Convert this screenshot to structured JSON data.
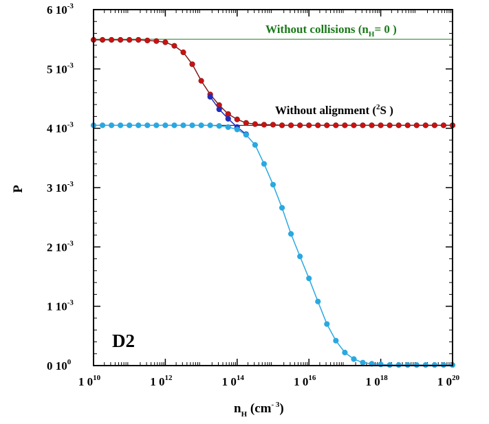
{
  "chart_data": {
    "type": "line",
    "xscale": "log",
    "x_ticks": [
      {
        "value": 10000000000.0,
        "base": "1 0",
        "exp": "10"
      },
      {
        "value": 1000000000000.0,
        "base": "1 0",
        "exp": "12"
      },
      {
        "value": 100000000000000.0,
        "base": "1 0",
        "exp": "14"
      },
      {
        "value": 1e+16,
        "base": "1 0",
        "exp": "16"
      },
      {
        "value": 1e+18,
        "base": "1 0",
        "exp": "18"
      },
      {
        "value": 1e+20,
        "base": "1 0",
        "exp": "20"
      }
    ],
    "y_ticks": [
      {
        "value": 0,
        "base": "0  10",
        "exp": "0"
      },
      {
        "value": 0.001,
        "base": "1  10",
        "exp": "-3"
      },
      {
        "value": 0.002,
        "base": "2  10",
        "exp": "-3"
      },
      {
        "value": 0.003,
        "base": "3  10",
        "exp": "-3"
      },
      {
        "value": 0.004,
        "base": "4  10",
        "exp": "-3"
      },
      {
        "value": 0.005,
        "base": "5  10",
        "exp": "-3"
      },
      {
        "value": 0.006,
        "base": "6  10",
        "exp": "-3"
      }
    ],
    "xlim": [
      10000000000.0,
      1e+20
    ],
    "ylim": [
      0,
      0.006
    ],
    "xlabel": {
      "base": "n",
      "sub": "H",
      "unit_open": " (cm",
      "unit_sup": "- 3",
      "unit_close": ")"
    },
    "ylabel": "P",
    "panel_label": "D2",
    "grid": false,
    "annotations": [
      {
        "key": "no_collisions",
        "text_before": "Without  collisions  (n",
        "sub": "H",
        "text_after": "= 0 )",
        "color": "#1a7a1a",
        "y": 0.0055
      },
      {
        "key": "no_alignment",
        "text_before": "Without  alignment  (",
        "sup": "2",
        "text_after": "S )",
        "color": "#000000",
        "y": 0.00405
      }
    ],
    "series": [
      {
        "key": "red",
        "color": "#cc1111",
        "line_color": "#7a1a1a",
        "x": [
          10.0,
          10.25,
          10.5,
          10.75,
          11.0,
          11.25,
          11.5,
          11.75,
          12.0,
          12.25,
          12.5,
          12.75,
          13.0,
          13.25,
          13.5,
          13.75,
          14.0,
          14.25,
          14.5,
          14.75,
          15.0,
          15.25,
          15.5,
          15.75,
          16.0,
          16.25,
          16.5,
          16.75,
          17.0,
          17.25,
          17.5,
          17.75,
          18.0,
          18.25,
          18.5,
          18.75,
          19.0,
          19.25,
          19.5,
          19.75,
          20.0
        ],
        "y": [
          0.00549,
          0.00549,
          0.00549,
          0.00549,
          0.00549,
          0.00549,
          0.00548,
          0.00547,
          0.00545,
          0.00539,
          0.00528,
          0.00508,
          0.0048,
          0.00457,
          0.00439,
          0.00424,
          0.00415,
          0.00409,
          0.00407,
          0.00406,
          0.00406,
          0.00405,
          0.00405,
          0.00405,
          0.00405,
          0.00405,
          0.00405,
          0.00405,
          0.00405,
          0.00405,
          0.00405,
          0.00405,
          0.00405,
          0.00405,
          0.00405,
          0.00405,
          0.00405,
          0.00405,
          0.00405,
          0.00405,
          0.00405
        ]
      },
      {
        "key": "dark_blue",
        "color": "#1f2dbb",
        "line_color": "#1f2dbb",
        "x": [
          13.25,
          13.5,
          13.75,
          14.0,
          14.25
        ],
        "y": [
          0.00453,
          0.00432,
          0.00416,
          0.00402,
          0.0039
        ]
      },
      {
        "key": "light_blue",
        "color": "#2aa8e0",
        "line_color": "#2aa8e0",
        "x": [
          10.0,
          10.25,
          10.5,
          10.75,
          11.0,
          11.25,
          11.5,
          11.75,
          12.0,
          12.25,
          12.5,
          12.75,
          13.0,
          13.25,
          13.5,
          13.75,
          14.0,
          14.25,
          14.5,
          14.75,
          15.0,
          15.25,
          15.5,
          15.75,
          16.0,
          16.25,
          16.5,
          16.75,
          17.0,
          17.25,
          17.5,
          17.75,
          18.0,
          18.25,
          18.5,
          18.75,
          19.0,
          19.25,
          19.5,
          19.75,
          20.0
        ],
        "y": [
          0.00405,
          0.00405,
          0.00405,
          0.00405,
          0.00405,
          0.00405,
          0.00405,
          0.00405,
          0.00405,
          0.00405,
          0.00405,
          0.00405,
          0.00405,
          0.00405,
          0.00404,
          0.00402,
          0.00398,
          0.00389,
          0.00372,
          0.0034,
          0.00305,
          0.00266,
          0.00222,
          0.00184,
          0.00147,
          0.00108,
          0.0007,
          0.00042,
          0.00022,
          0.00011,
          5e-05,
          3e-05,
          2e-05,
          1e-05,
          1e-05,
          1e-05,
          1e-05,
          1e-05,
          1e-05,
          1e-05,
          1e-05
        ]
      }
    ]
  }
}
